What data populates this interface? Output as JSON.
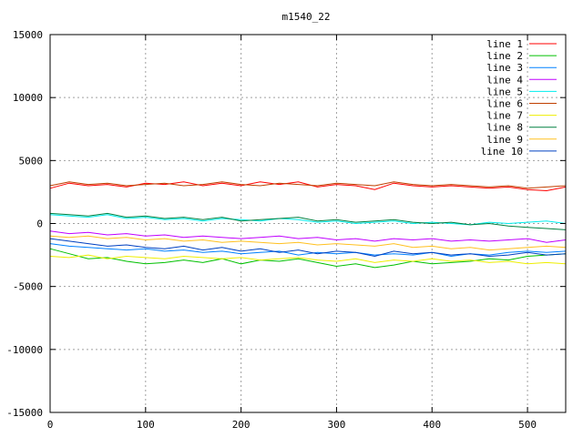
{
  "chart_data": {
    "type": "line",
    "title": "m1540_22",
    "xlabel": "",
    "ylabel": "",
    "xlim": [
      0,
      540
    ],
    "ylim": [
      -15000,
      15000
    ],
    "grid": true,
    "legend_position": "top-right",
    "x_ticks": [
      0,
      100,
      200,
      300,
      400,
      500
    ],
    "y_ticks": [
      -15000,
      -10000,
      -5000,
      0,
      5000,
      10000,
      15000
    ],
    "x_tick_labels": [
      "0",
      "100",
      "200",
      "300",
      "400",
      "500"
    ],
    "y_tick_labels": [
      "-15000",
      "-10000",
      "-5000",
      "0",
      "5000",
      "10000",
      "15000"
    ],
    "x": [
      0,
      20,
      40,
      60,
      80,
      100,
      120,
      140,
      160,
      180,
      200,
      220,
      240,
      260,
      280,
      300,
      320,
      340,
      360,
      380,
      400,
      420,
      440,
      460,
      480,
      500,
      520,
      540
    ],
    "series": [
      {
        "name": "line 1",
        "color": "#ff0000",
        "values": [
          2800,
          3200,
          3000,
          3100,
          2900,
          3200,
          3100,
          3300,
          3000,
          3200,
          3000,
          3300,
          3100,
          3300,
          2900,
          3100,
          3000,
          2700,
          3200,
          3000,
          2900,
          3000,
          2900,
          2800,
          2900,
          2700,
          2600,
          2900
        ]
      },
      {
        "name": "line 2",
        "color": "#00c000",
        "values": [
          -2000,
          -2400,
          -2800,
          -2700,
          -3000,
          -3200,
          -3100,
          -2900,
          -3100,
          -2800,
          -3200,
          -2900,
          -3000,
          -2800,
          -3100,
          -3400,
          -3200,
          -3500,
          -3300,
          -3000,
          -3200,
          -3100,
          -3000,
          -2800,
          -2900,
          -2600,
          -2500,
          -2400
        ]
      },
      {
        "name": "line 3",
        "color": "#0080ff",
        "values": [
          -1600,
          -1800,
          -1900,
          -2000,
          -2100,
          -2000,
          -2200,
          -2100,
          -2300,
          -2200,
          -2400,
          -2300,
          -2200,
          -2500,
          -2300,
          -2400,
          -2300,
          -2500,
          -2400,
          -2500,
          -2300,
          -2600,
          -2400,
          -2500,
          -2300,
          -2200,
          -2300,
          -2200
        ]
      },
      {
        "name": "line 4",
        "color": "#c000ff",
        "values": [
          -600,
          -800,
          -700,
          -900,
          -800,
          -1000,
          -900,
          -1100,
          -1000,
          -1100,
          -1200,
          -1100,
          -1000,
          -1200,
          -1100,
          -1300,
          -1200,
          -1400,
          -1200,
          -1300,
          -1200,
          -1400,
          -1300,
          -1400,
          -1300,
          -1200,
          -1500,
          -1300
        ]
      },
      {
        "name": "line 5",
        "color": "#00eeee",
        "values": [
          700,
          600,
          500,
          700,
          400,
          500,
          300,
          400,
          200,
          400,
          300,
          200,
          400,
          300,
          100,
          200,
          0,
          100,
          200,
          0,
          100,
          0,
          -100,
          100,
          0,
          100,
          200,
          0
        ]
      },
      {
        "name": "line 6",
        "color": "#c04000",
        "values": [
          3000,
          3300,
          3100,
          3200,
          3000,
          3100,
          3200,
          3000,
          3100,
          3300,
          3100,
          3000,
          3200,
          3100,
          3000,
          3200,
          3100,
          3000,
          3300,
          3100,
          3000,
          3100,
          3000,
          2900,
          3000,
          2800,
          2900,
          3000
        ]
      },
      {
        "name": "line 7",
        "color": "#eeee00",
        "values": [
          -2600,
          -2700,
          -2500,
          -2800,
          -2600,
          -2700,
          -2800,
          -2600,
          -2700,
          -2800,
          -2700,
          -2900,
          -2800,
          -2700,
          -2900,
          -3000,
          -2800,
          -3100,
          -2900,
          -3000,
          -2800,
          -3000,
          -2900,
          -3100,
          -3000,
          -3200,
          -3100,
          -3200
        ]
      },
      {
        "name": "line 8",
        "color": "#008040",
        "values": [
          800,
          700,
          600,
          800,
          500,
          600,
          400,
          500,
          300,
          500,
          200,
          300,
          400,
          500,
          200,
          300,
          100,
          200,
          300,
          100,
          0,
          100,
          -100,
          0,
          -200,
          -300,
          -400,
          -500
        ]
      },
      {
        "name": "line 9",
        "color": "#ffc020",
        "values": [
          -1000,
          -1100,
          -1000,
          -1200,
          -1100,
          -1300,
          -1200,
          -1400,
          -1300,
          -1500,
          -1400,
          -1500,
          -1600,
          -1500,
          -1700,
          -1600,
          -1700,
          -1800,
          -1600,
          -1900,
          -1800,
          -2000,
          -1900,
          -2100,
          -2000,
          -1900,
          -1800,
          -1900
        ]
      },
      {
        "name": "line 10",
        "color": "#0040c0",
        "values": [
          -1200,
          -1400,
          -1600,
          -1800,
          -1700,
          -1900,
          -2000,
          -1800,
          -2100,
          -1900,
          -2200,
          -2000,
          -2300,
          -2100,
          -2400,
          -2200,
          -2300,
          -2600,
          -2200,
          -2400,
          -2300,
          -2500,
          -2400,
          -2600,
          -2500,
          -2300,
          -2500,
          -2400
        ]
      }
    ]
  }
}
